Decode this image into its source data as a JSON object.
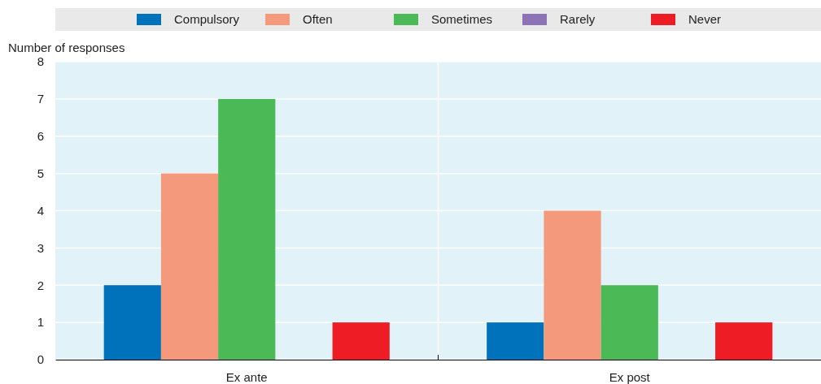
{
  "chart_data": {
    "type": "bar",
    "ylabel": "Number of responses",
    "categories": [
      "Ex ante",
      "Ex post"
    ],
    "series": [
      {
        "name": "Compulsory",
        "color": "#0072bc",
        "values": [
          2,
          1
        ]
      },
      {
        "name": "Often",
        "color": "#f4997b",
        "values": [
          5,
          4
        ]
      },
      {
        "name": "Sometimes",
        "color": "#4cb957",
        "values": [
          7,
          2
        ]
      },
      {
        "name": "Rarely",
        "color": "#8b73b6",
        "values": [
          0,
          0
        ]
      },
      {
        "name": "Never",
        "color": "#ee1c25",
        "values": [
          1,
          1
        ]
      }
    ],
    "ylim": [
      0,
      8
    ],
    "yticks": [
      0,
      1,
      2,
      3,
      4,
      5,
      6,
      7,
      8
    ],
    "grid": "y",
    "legend": "top"
  }
}
